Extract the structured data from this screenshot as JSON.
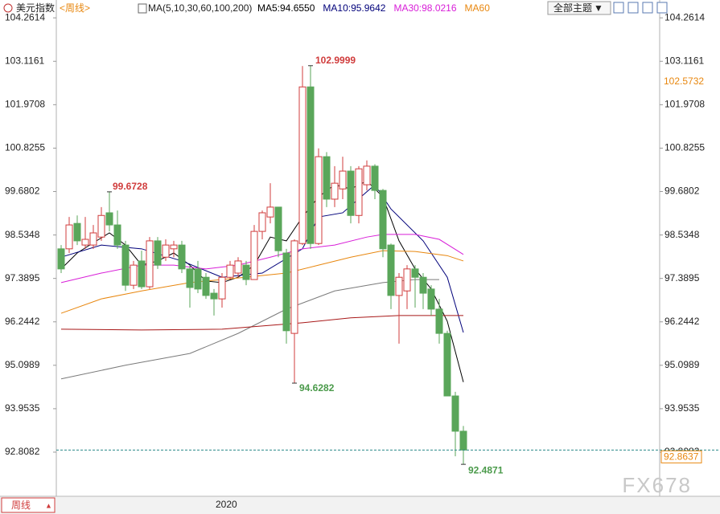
{
  "chart_data": {
    "type": "candlestick",
    "title": "美元指数",
    "period": "<周线>",
    "ma_legend": "MA(5,10,30,60,100,200)",
    "theme_button": "全部主题",
    "period_button": "周线",
    "year_label": "2020",
    "watermark": "FX678",
    "up_color": "#d03c3c",
    "down_color": "#5aa65a",
    "last_line_color": "#2a8a8a",
    "marker_color": "#e8870f",
    "open": [
      98.17,
      98.17,
      98.84,
      98.27,
      98.27,
      98.48,
      99.12,
      98.8,
      98.27,
      97.21,
      97.85,
      97.17,
      98.38,
      97.95,
      98.17,
      98.27,
      97.64,
      97.64,
      97.42,
      97.0,
      96.85,
      97.42,
      97.53,
      97.74,
      97.36,
      98.63,
      99.01,
      99.27,
      98.06,
      95.94,
      98.31,
      102.44,
      98.31,
      100.6,
      99.48,
      99.75,
      100.22,
      99.05,
      99.86,
      100.35,
      99.71,
      98.27,
      96.94,
      97.06,
      97.64,
      97.42,
      97.11,
      96.58,
      95.94,
      94.29,
      93.36
    ],
    "high": [
      98.27,
      99.01,
      99.05,
      99.01,
      98.8,
      99.27,
      99.6728,
      99.18,
      98.38,
      97.85,
      98.12,
      98.48,
      98.48,
      98.42,
      98.38,
      98.38,
      97.74,
      97.85,
      97.53,
      97.11,
      97.53,
      97.85,
      97.95,
      97.85,
      98.8,
      99.18,
      99.9,
      99.27,
      98.17,
      98.42,
      102.99,
      102.9999,
      100.82,
      100.72,
      100.35,
      100.6,
      100.35,
      100.35,
      100.5,
      100.4,
      99.75,
      98.31,
      97.53,
      97.74,
      97.74,
      97.53,
      97.21,
      96.85,
      96.01,
      94.4,
      93.5
    ],
    "low": [
      97.53,
      98.06,
      98.27,
      98.17,
      98.17,
      98.38,
      98.63,
      98.17,
      97.06,
      97.11,
      97.11,
      97.11,
      97.64,
      97.85,
      97.95,
      97.53,
      96.62,
      97.0,
      96.85,
      96.41,
      96.62,
      97.36,
      97.42,
      97.21,
      97.36,
      98.42,
      98.84,
      97.95,
      95.67,
      94.6282,
      98.27,
      98.17,
      98.27,
      99.27,
      99.27,
      99.48,
      98.84,
      98.84,
      99.71,
      99.48,
      97.95,
      96.58,
      95.67,
      96.58,
      96.62,
      96.58,
      96.41,
      95.67,
      94.29,
      92.7,
      92.4871
    ],
    "close": [
      97.64,
      98.8,
      98.38,
      98.42,
      98.59,
      99.05,
      98.8,
      98.27,
      97.21,
      97.74,
      97.17,
      98.38,
      97.74,
      98.27,
      98.27,
      97.64,
      97.15,
      97.11,
      96.94,
      96.85,
      97.42,
      97.74,
      97.85,
      97.36,
      98.63,
      99.12,
      99.27,
      98.12,
      96.01,
      98.38,
      102.44,
      98.31,
      100.6,
      99.48,
      99.9,
      100.22,
      99.05,
      100.28,
      100.35,
      99.71,
      98.17,
      96.94,
      97.42,
      97.64,
      97.42,
      97.0,
      96.58,
      95.94,
      94.29,
      93.36,
      92.8637
    ],
    "series": [
      {
        "name": "MA5:94.6550",
        "color": "#000000",
        "x": [
          0,
          2,
          4,
          6,
          8,
          10,
          12,
          14,
          16,
          18,
          20,
          22,
          24,
          26,
          28,
          30,
          32,
          34,
          36,
          38,
          40,
          42,
          44,
          46,
          48,
          50
        ],
        "values": [
          97.64,
          98.06,
          98.33,
          98.59,
          98.27,
          97.74,
          97.85,
          98.06,
          97.74,
          97.32,
          97.28,
          97.42,
          97.74,
          98.48,
          98.38,
          99.01,
          99.54,
          99.86,
          99.75,
          99.96,
          99.54,
          98.38,
          97.64,
          97.11,
          96.26,
          94.655
        ]
      },
      {
        "name": "MA10:95.9642",
        "color": "#00007a",
        "x": [
          0,
          5,
          10,
          15,
          20,
          25,
          30,
          32,
          35,
          39,
          41,
          45,
          48,
          50
        ],
        "values": [
          97.95,
          98.27,
          98.17,
          97.85,
          97.42,
          97.53,
          98.17,
          99.01,
          99.12,
          99.86,
          99.22,
          98.38,
          97.42,
          95.9642
        ]
      },
      {
        "name": "MA30:98.0216",
        "color": "#d81ed8",
        "x": [
          0,
          5,
          10,
          14,
          18,
          22,
          26,
          30,
          34,
          38,
          40,
          44,
          47,
          50
        ],
        "values": [
          97.28,
          97.53,
          97.74,
          97.74,
          97.64,
          97.74,
          97.95,
          98.17,
          98.27,
          98.48,
          98.55,
          98.55,
          98.42,
          98.0216
        ]
      },
      {
        "name": "MA60",
        "color": "#e8870f",
        "x": [
          0,
          5,
          10,
          16,
          22,
          28,
          32,
          36,
          40,
          44,
          48,
          50
        ],
        "values": [
          96.47,
          96.85,
          97.06,
          97.28,
          97.4,
          97.53,
          97.74,
          97.95,
          98.12,
          98.1,
          97.99,
          97.85
        ]
      },
      {
        "color": "#7a7a7a",
        "x": [
          0,
          8,
          16,
          22,
          28,
          34,
          40,
          44,
          47
        ],
        "values": [
          94.74,
          95.1,
          95.41,
          95.94,
          96.58,
          97.06,
          97.28,
          97.36,
          97.36
        ]
      },
      {
        "color": "#a81818",
        "x": [
          0,
          10,
          20,
          30,
          36,
          42,
          47,
          50
        ],
        "values": [
          96.05,
          96.03,
          96.05,
          96.22,
          96.35,
          96.41,
          96.41,
          96.41
        ]
      }
    ],
    "marker_value": 102.5732,
    "ylim": [
      91.77,
      104.52
    ],
    "yticks": [
      104.2614,
      103.1161,
      101.9708,
      100.8255,
      99.6802,
      98.5348,
      97.3895,
      96.2442,
      95.0989,
      93.9535,
      92.8082
    ]
  }
}
